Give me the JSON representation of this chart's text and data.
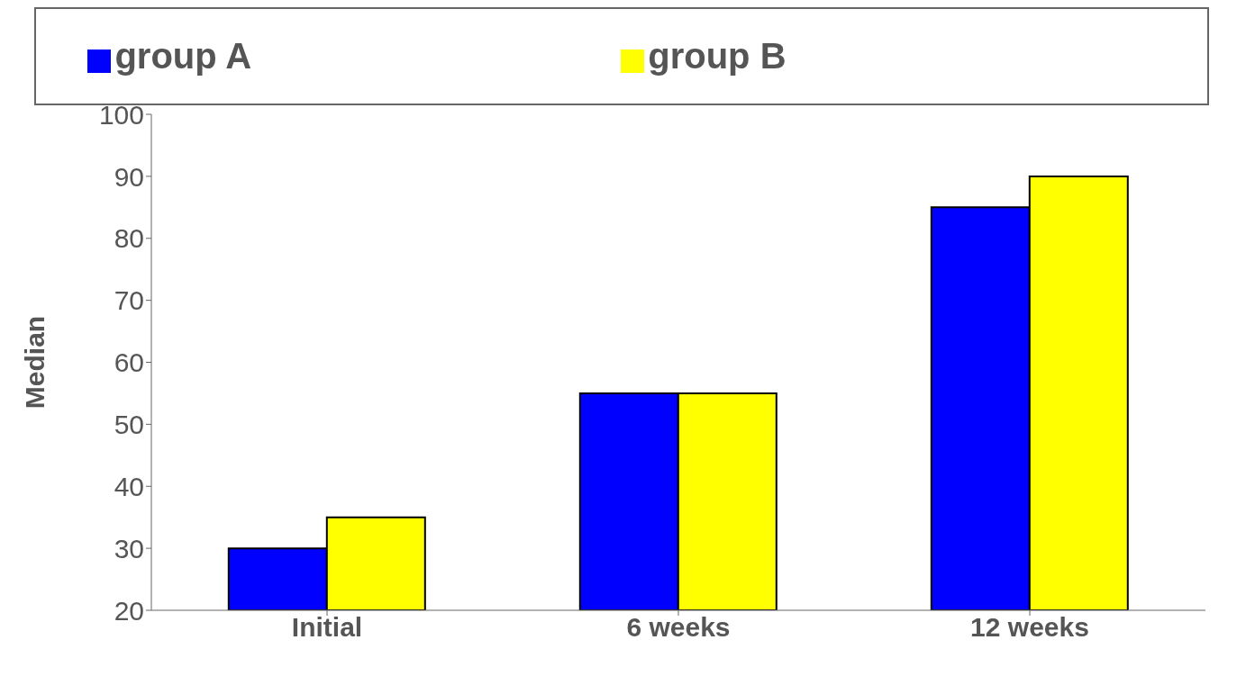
{
  "chart_data": {
    "type": "bar",
    "ylabel": "Median",
    "categories": [
      "Initial",
      "6 weeks",
      "12 weeks"
    ],
    "series": [
      {
        "name": "group A",
        "color": "#0000ff",
        "values": [
          30,
          55,
          85
        ]
      },
      {
        "name": "group B",
        "color": "#ffff00",
        "values": [
          35,
          55,
          90
        ]
      }
    ],
    "ylim": [
      20,
      100
    ],
    "yticks": [
      20,
      30,
      40,
      50,
      60,
      70,
      80,
      90,
      100
    ],
    "legend": "top"
  }
}
